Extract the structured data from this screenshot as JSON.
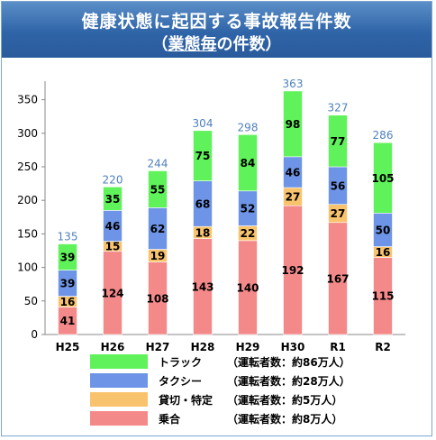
{
  "title": {
    "line1": "健康状態に起因する事故報告件数",
    "line2_prefix": "（",
    "line2_emph": "業態毎",
    "line2_suffix": "の件数）"
  },
  "chart_data": {
    "type": "bar",
    "stacked": true,
    "categories": [
      "H25",
      "H26",
      "H27",
      "H28",
      "H29",
      "H30",
      "R1",
      "R2"
    ],
    "series": [
      {
        "name": "乗合",
        "note": "（運転者数：約8万人）",
        "color": "#f4898a",
        "values": [
          41,
          124,
          108,
          143,
          140,
          192,
          167,
          115
        ]
      },
      {
        "name": "貸切・特定",
        "note": "（運転者数：約5万人）",
        "color": "#f8c36c",
        "values": [
          16,
          15,
          19,
          18,
          22,
          27,
          27,
          16
        ]
      },
      {
        "name": "タクシー",
        "note": "（運転者数：約28万人）",
        "color": "#6d94e6",
        "values": [
          39,
          46,
          62,
          68,
          52,
          46,
          56,
          50
        ]
      },
      {
        "name": "トラック",
        "note": "（運転者数：約86万人）",
        "color": "#5ff25a",
        "values": [
          39,
          35,
          55,
          75,
          84,
          98,
          77,
          105
        ]
      }
    ],
    "totals": [
      135,
      220,
      244,
      304,
      298,
      363,
      327,
      286
    ],
    "ylim": [
      0,
      375
    ],
    "yticks": [
      0,
      50,
      100,
      150,
      200,
      250,
      300,
      350
    ],
    "grid": false,
    "legend_placement": "bottom",
    "total_label_color": "#4f81bd"
  }
}
